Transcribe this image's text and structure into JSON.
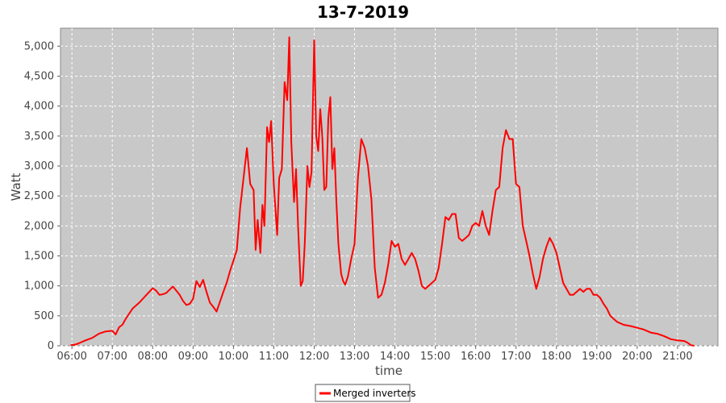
{
  "chart_data": {
    "type": "line",
    "title": "13-7-2019",
    "xlabel": "time",
    "ylabel": "Watt",
    "xlim": [
      "05:43",
      "22:00"
    ],
    "ylim": [
      0,
      5300
    ],
    "x_ticks": [
      "06:00",
      "07:00",
      "08:00",
      "09:00",
      "10:00",
      "11:00",
      "12:00",
      "13:00",
      "14:00",
      "15:00",
      "16:00",
      "17:00",
      "18:00",
      "19:00",
      "20:00",
      "21:00"
    ],
    "y_ticks": [
      0,
      500,
      1000,
      1500,
      2000,
      2500,
      3000,
      3500,
      4000,
      4500,
      5000
    ],
    "y_tick_labels": [
      "0",
      "500",
      "1,000",
      "1,500",
      "2,000",
      "2,500",
      "3,000",
      "3,500",
      "4,000",
      "4,500",
      "5,000"
    ],
    "grid": true,
    "legend_position": "bottom-center",
    "series": [
      {
        "name": "Merged inverters",
        "color": "#ff0000",
        "x": [
          "05:58",
          "06:05",
          "06:10",
          "06:20",
          "06:30",
          "06:40",
          "06:50",
          "07:00",
          "07:05",
          "07:10",
          "07:15",
          "07:20",
          "07:30",
          "07:40",
          "07:50",
          "08:00",
          "08:05",
          "08:10",
          "08:15",
          "08:20",
          "08:30",
          "08:40",
          "08:45",
          "08:50",
          "08:55",
          "09:00",
          "09:05",
          "09:10",
          "09:15",
          "09:20",
          "09:25",
          "09:30",
          "09:35",
          "09:45",
          "09:50",
          "09:55",
          "10:00",
          "10:05",
          "10:10",
          "10:15",
          "10:20",
          "10:25",
          "10:30",
          "10:33",
          "10:36",
          "10:40",
          "10:43",
          "10:46",
          "10:50",
          "10:53",
          "10:56",
          "11:00",
          "11:05",
          "11:08",
          "11:12",
          "11:16",
          "11:20",
          "11:23",
          "11:26",
          "11:30",
          "11:33",
          "11:36",
          "11:40",
          "11:43",
          "11:46",
          "11:50",
          "11:53",
          "11:56",
          "12:00",
          "12:03",
          "12:06",
          "12:09",
          "12:12",
          "12:15",
          "12:18",
          "12:21",
          "12:24",
          "12:27",
          "12:30",
          "12:33",
          "12:36",
          "12:40",
          "12:43",
          "12:46",
          "12:50",
          "12:55",
          "13:00",
          "13:05",
          "13:10",
          "13:15",
          "13:20",
          "13:25",
          "13:30",
          "13:35",
          "13:40",
          "13:45",
          "13:50",
          "13:55",
          "14:00",
          "14:05",
          "14:10",
          "14:15",
          "14:20",
          "14:25",
          "14:30",
          "14:35",
          "14:40",
          "14:45",
          "14:50",
          "14:55",
          "15:00",
          "15:05",
          "15:10",
          "15:15",
          "15:20",
          "15:25",
          "15:30",
          "15:35",
          "15:40",
          "15:45",
          "15:50",
          "15:55",
          "16:00",
          "16:05",
          "16:10",
          "16:15",
          "16:20",
          "16:25",
          "16:30",
          "16:35",
          "16:40",
          "16:45",
          "16:50",
          "16:55",
          "17:00",
          "17:05",
          "17:10",
          "17:15",
          "17:20",
          "17:25",
          "17:30",
          "17:35",
          "17:40",
          "17:45",
          "17:50",
          "17:55",
          "18:00",
          "18:05",
          "18:10",
          "18:15",
          "18:20",
          "18:25",
          "18:30",
          "18:35",
          "18:40",
          "18:45",
          "18:50",
          "18:55",
          "19:00",
          "19:05",
          "19:10",
          "19:15",
          "19:20",
          "19:30",
          "19:40",
          "19:50",
          "20:00",
          "20:10",
          "20:20",
          "20:30",
          "20:40",
          "20:50",
          "21:00",
          "21:10",
          "21:15",
          "21:20",
          "21:25"
        ],
        "values": [
          10,
          20,
          40,
          90,
          130,
          200,
          240,
          250,
          190,
          310,
          350,
          450,
          620,
          720,
          840,
          960,
          920,
          850,
          860,
          880,
          990,
          850,
          750,
          680,
          700,
          780,
          1080,
          980,
          1100,
          900,
          720,
          650,
          570,
          900,
          1050,
          1250,
          1420,
          1600,
          2300,
          2800,
          3300,
          2700,
          2600,
          1600,
          2100,
          1550,
          2350,
          2000,
          3650,
          3400,
          3750,
          2700,
          1850,
          2800,
          2950,
          4400,
          4100,
          5150,
          3400,
          2400,
          2950,
          2000,
          1000,
          1080,
          1700,
          3000,
          2650,
          2900,
          5100,
          3500,
          3250,
          3950,
          3500,
          2600,
          2650,
          3800,
          4150,
          2950,
          3300,
          2400,
          1700,
          1200,
          1080,
          1020,
          1150,
          1450,
          1700,
          2800,
          3450,
          3300,
          3000,
          2450,
          1300,
          800,
          850,
          1050,
          1350,
          1750,
          1650,
          1700,
          1450,
          1350,
          1450,
          1550,
          1450,
          1250,
          1000,
          950,
          1000,
          1050,
          1100,
          1300,
          1700,
          2150,
          2100,
          2200,
          2200,
          1800,
          1750,
          1800,
          1850,
          2000,
          2050,
          2000,
          2250,
          2000,
          1850,
          2250,
          2600,
          2650,
          3300,
          3600,
          3450,
          3450,
          2700,
          2650,
          2000,
          1750,
          1500,
          1200,
          950,
          1150,
          1450,
          1650,
          1800,
          1700,
          1550,
          1300,
          1050,
          950,
          850,
          850,
          900,
          950,
          900,
          950,
          950,
          850,
          850,
          800,
          700,
          620,
          500,
          400,
          350,
          330,
          300,
          270,
          220,
          200,
          160,
          110,
          90,
          80,
          50,
          10,
          0
        ]
      }
    ]
  }
}
